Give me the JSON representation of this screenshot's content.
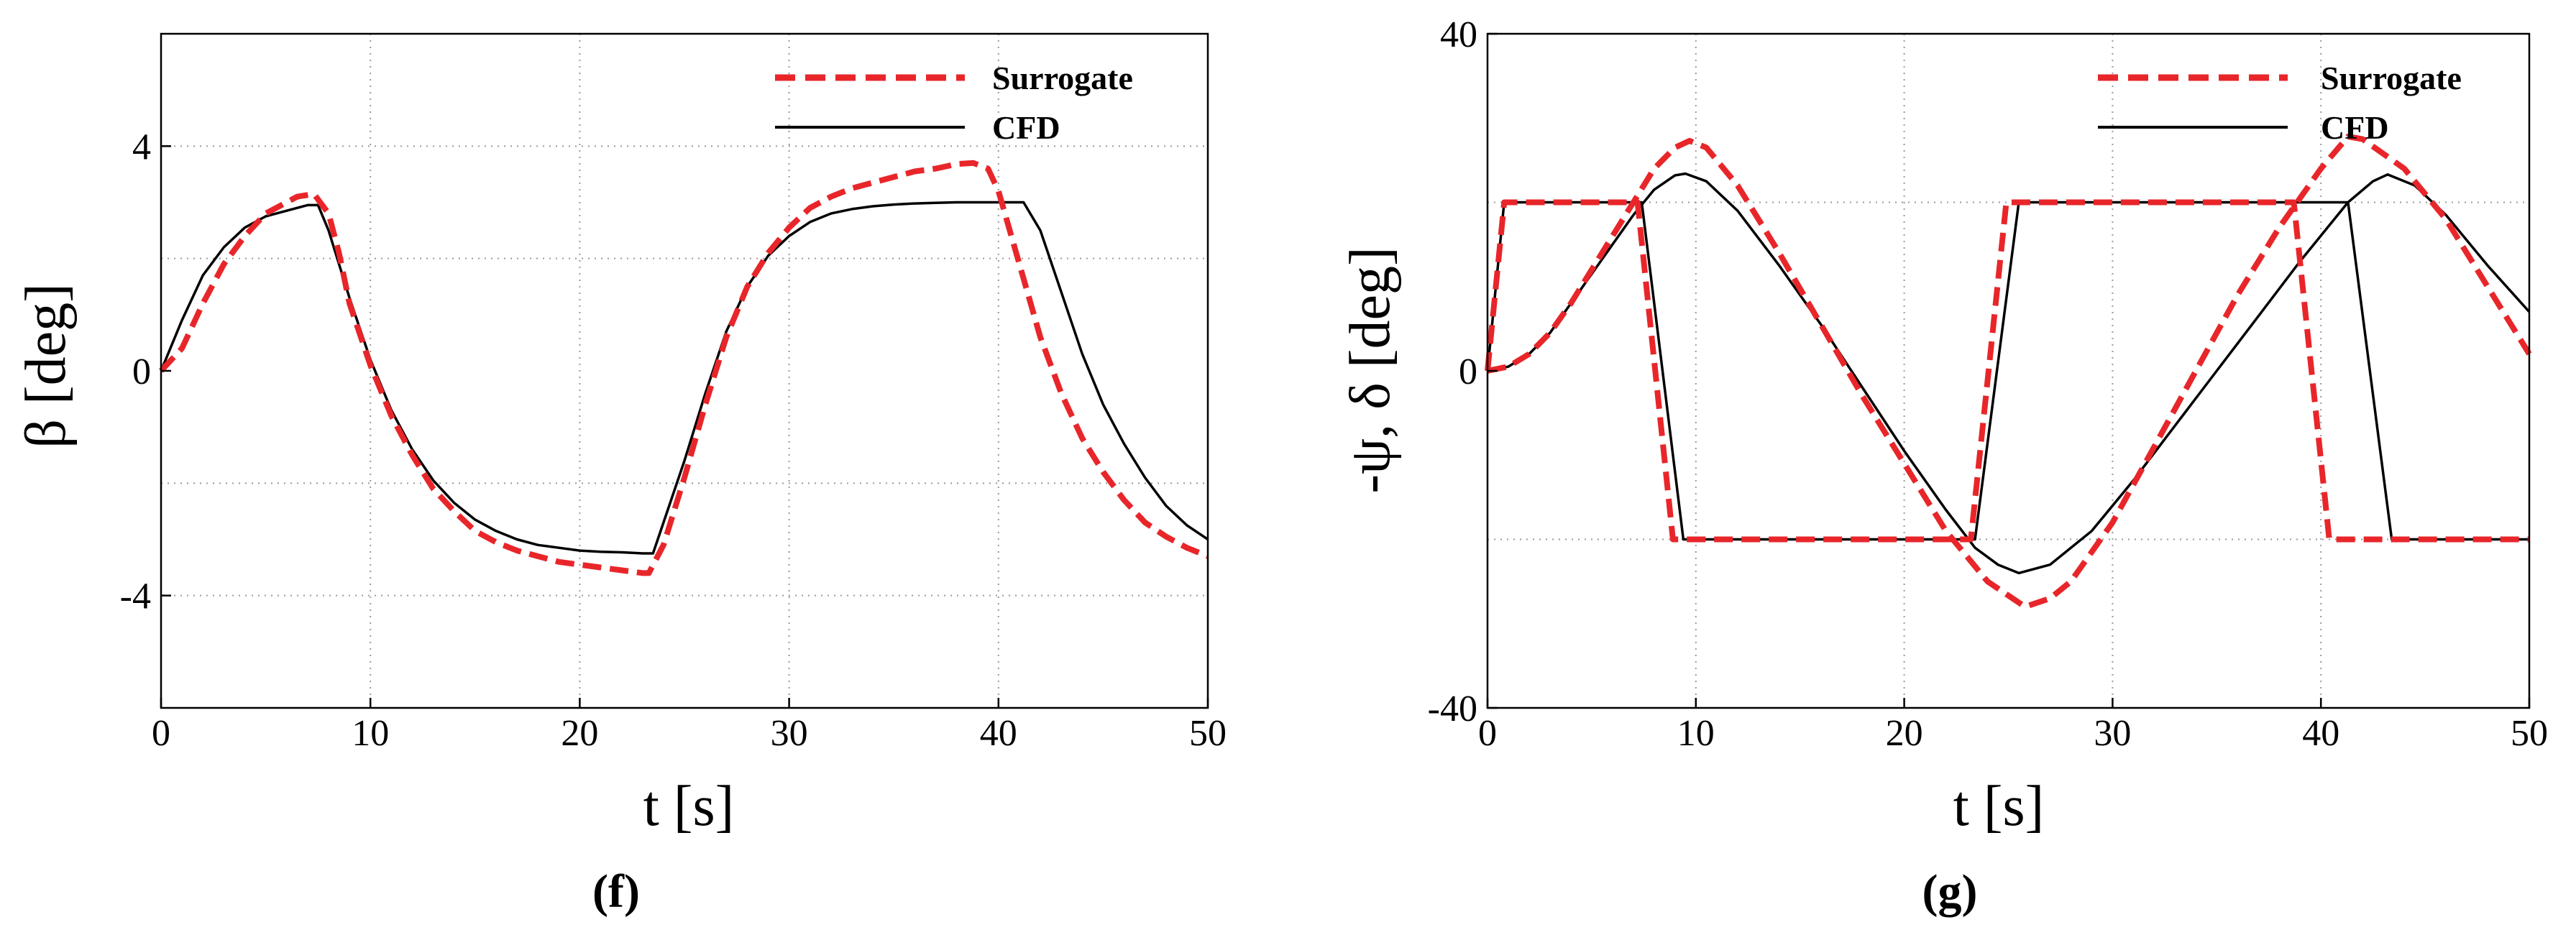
{
  "charts": [
    {
      "type": "line",
      "panel_label": "(f)",
      "xlabel": "t [s]",
      "ylabel": "β [deg]",
      "xlim": [
        0,
        50
      ],
      "ylim": [
        -6,
        6
      ],
      "xticks": [
        0,
        10,
        20,
        30,
        40,
        50
      ],
      "yticks": [
        -4,
        0,
        4
      ],
      "ygrid": [
        -4,
        -2,
        2,
        4
      ],
      "xgrid": [
        10,
        20,
        30,
        40
      ],
      "legend": [
        "Surrogate",
        "CFD"
      ],
      "legend_position": "top-right",
      "series": [
        {
          "name": "Surrogate",
          "color": "#e8262a",
          "style": "dashed",
          "x": [
            0,
            1,
            2,
            3,
            4,
            5,
            6,
            6.5,
            7.3,
            8,
            8.5,
            9,
            10,
            11,
            12,
            13,
            14,
            15,
            16,
            17,
            18,
            19,
            20,
            21,
            22,
            23,
            23.3,
            24,
            25,
            26,
            27,
            28,
            29,
            30,
            31,
            32,
            33,
            34,
            35,
            36,
            37,
            38,
            38.8,
            39.5,
            40,
            41,
            42,
            43,
            44,
            45,
            46,
            47,
            48,
            49,
            50
          ],
          "y": [
            0,
            0.4,
            1.2,
            1.9,
            2.4,
            2.8,
            3.0,
            3.1,
            3.15,
            2.8,
            2.1,
            1.2,
            0.1,
            -0.8,
            -1.5,
            -2.1,
            -2.5,
            -2.85,
            -3.05,
            -3.2,
            -3.3,
            -3.4,
            -3.45,
            -3.5,
            -3.55,
            -3.6,
            -3.6,
            -3.1,
            -1.9,
            -0.6,
            0.6,
            1.5,
            2.1,
            2.55,
            2.9,
            3.1,
            3.25,
            3.35,
            3.45,
            3.55,
            3.6,
            3.68,
            3.7,
            3.6,
            3.2,
            1.9,
            0.6,
            -0.4,
            -1.2,
            -1.8,
            -2.3,
            -2.7,
            -2.95,
            -3.15,
            -3.3
          ]
        },
        {
          "name": "CFD",
          "color": "#000000",
          "style": "solid",
          "x": [
            0,
            1,
            2,
            3,
            4,
            5,
            6,
            7,
            7.5,
            8,
            9,
            10,
            11,
            12,
            13,
            14,
            15,
            16,
            17,
            18,
            19,
            20,
            21,
            22,
            23,
            23.5,
            24,
            25,
            26,
            27,
            28,
            29,
            30,
            31,
            32,
            33,
            34,
            35,
            36,
            37,
            38,
            39,
            40,
            41.2,
            42,
            43,
            44,
            45,
            46,
            47,
            48,
            49,
            50
          ],
          "y": [
            0,
            0.9,
            1.7,
            2.2,
            2.55,
            2.75,
            2.85,
            2.95,
            2.95,
            2.5,
            1.3,
            0.2,
            -0.7,
            -1.4,
            -1.95,
            -2.35,
            -2.65,
            -2.85,
            -3.0,
            -3.1,
            -3.15,
            -3.2,
            -3.22,
            -3.23,
            -3.25,
            -3.25,
            -2.7,
            -1.6,
            -0.4,
            0.7,
            1.5,
            2.05,
            2.4,
            2.65,
            2.8,
            2.88,
            2.93,
            2.96,
            2.98,
            2.99,
            3.0,
            3.0,
            3.0,
            3.0,
            2.5,
            1.4,
            0.3,
            -0.6,
            -1.3,
            -1.9,
            -2.4,
            -2.75,
            -3.0
          ]
        }
      ]
    },
    {
      "type": "line",
      "panel_label": "(g)",
      "xlabel": "t [s]",
      "ylabel": "-ψ, δ [deg]",
      "xlim": [
        0,
        50
      ],
      "ylim": [
        -40,
        40
      ],
      "xticks": [
        0,
        10,
        20,
        30,
        40,
        50
      ],
      "yticks": [
        -40,
        0,
        40
      ],
      "ygrid": [
        -20,
        20
      ],
      "xgrid": [
        10,
        20,
        30,
        40
      ],
      "legend": [
        "Surrogate",
        "CFD"
      ],
      "legend_position": "top-right",
      "series": [
        {
          "name": "Surrogate δ",
          "color": "#e8262a",
          "style": "dashed",
          "x": [
            0,
            0.8,
            7.2,
            8.9,
            23.2,
            24.9,
            38.7,
            40.4,
            50
          ],
          "y": [
            0,
            20,
            20,
            -20,
            -20,
            20,
            20,
            -20,
            -20
          ]
        },
        {
          "name": "Surrogate -ψ",
          "color": "#e8262a",
          "style": "dashed",
          "x": [
            0,
            1,
            2,
            3,
            4,
            5,
            6,
            7,
            8,
            9,
            9.7,
            10.5,
            12,
            14,
            16,
            18,
            20,
            22,
            24,
            25.8,
            27,
            28,
            30,
            32,
            34,
            36,
            38,
            40,
            41.3,
            42,
            44,
            46,
            48,
            50
          ],
          "y": [
            0,
            0.5,
            2.0,
            4.5,
            8,
            12,
            16,
            20,
            24,
            26.5,
            27.3,
            26.5,
            22,
            14,
            5.5,
            -3,
            -11,
            -19,
            -25,
            -28,
            -27,
            -25,
            -18,
            -9,
            0,
            9,
            17,
            24,
            27.8,
            27.5,
            24,
            18,
            10,
            2
          ]
        },
        {
          "name": "CFD δ",
          "color": "#000000",
          "style": "solid",
          "x": [
            0,
            0.8,
            7.4,
            9.4,
            23.4,
            25.5,
            41.3,
            43.4,
            50
          ],
          "y": [
            0,
            20,
            20,
            -20,
            -20,
            20,
            20,
            -20,
            -20
          ]
        },
        {
          "name": "CFD -ψ",
          "color": "#000000",
          "style": "solid",
          "x": [
            0,
            1,
            2,
            3,
            4,
            5,
            6,
            7,
            8,
            9,
            9.5,
            10.5,
            12,
            14,
            16,
            18,
            20,
            22,
            23.4,
            24.5,
            25.5,
            27,
            29,
            31,
            33,
            35,
            37,
            39,
            41.3,
            42.5,
            43.2,
            44.5,
            46,
            48,
            50
          ],
          "y": [
            0,
            0.5,
            2.0,
            4.5,
            8,
            11.5,
            15,
            18.5,
            21.5,
            23.2,
            23.4,
            22.5,
            19,
            12.5,
            5.5,
            -2,
            -9.5,
            -16.5,
            -21,
            -23,
            -24,
            -23,
            -19,
            -13,
            -6.5,
            0,
            6.5,
            13,
            20,
            22.5,
            23.3,
            22,
            18.5,
            12.5,
            7
          ]
        }
      ]
    }
  ]
}
